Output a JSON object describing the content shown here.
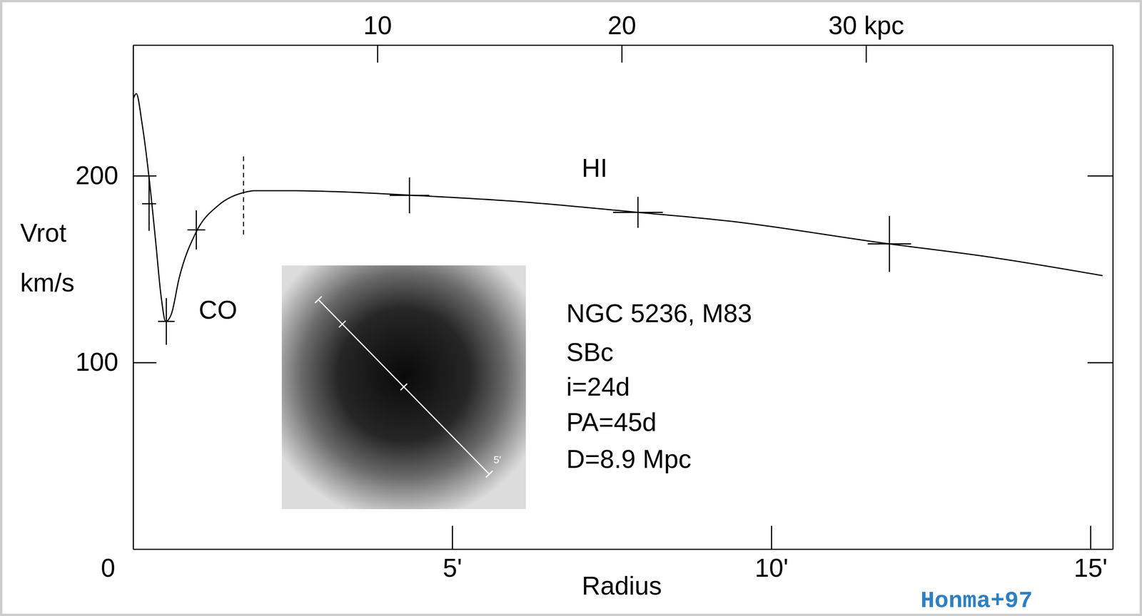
{
  "chart_data": {
    "type": "line",
    "xlabel": "Radius",
    "ylabel": [
      "Vrot",
      "km/s"
    ],
    "xlim": [
      0,
      15.35
    ],
    "xticks": [
      0,
      {
        "value": 5,
        "label": "5'"
      },
      {
        "value": 10,
        "label": "10'"
      },
      {
        "value": 15,
        "label": "15'"
      }
    ],
    "x2lim": [
      0,
      40.1
    ],
    "x2ticks": [
      10,
      20,
      {
        "value": 30,
        "label": "30 kpc"
      }
    ],
    "ylim": [
      0,
      270
    ],
    "yticks": [
      100,
      200
    ],
    "grid": false,
    "series": [
      {
        "type": "line",
        "color": "#000000",
        "line_style": "solid",
        "x": [
          0,
          0.05,
          0.14,
          0.25,
          0.35,
          0.44,
          0.51,
          0.6,
          0.72,
          0.99,
          1.33,
          1.73,
          1.9,
          2.47,
          3.16,
          4.33,
          5.9,
          7.91,
          9.32,
          11.85,
          13.31,
          15.19
        ],
        "values": [
          241,
          244,
          228,
          199,
          166,
          135,
          122,
          126,
          145,
          170,
          184,
          191,
          192,
          192,
          191.5,
          189.6,
          186.5,
          180.4,
          175.8,
          163.5,
          157,
          146.5
        ]
      },
      {
        "type": "errorbar",
        "color": "#000000",
        "marker": "cross",
        "x": [
          0.25,
          0.52,
          0.99,
          4.33,
          7.91,
          11.85
        ],
        "values": [
          185,
          122,
          171,
          189.5,
          180.4,
          163.5
        ],
        "yerr": [
          14.5,
          12.5,
          10.5,
          9.6,
          8.3,
          15
        ],
        "xerr": [
          0.11,
          0.13,
          0.14,
          0.31,
          0.39,
          0.34
        ]
      }
    ],
    "reference_lines": [
      {
        "x": 1.73,
        "y": [
          168.5,
          211.5
        ],
        "line_style": "dashed"
      }
    ],
    "annotations": [
      {
        "text": "CO",
        "x": 1.33,
        "y": 127
      },
      {
        "text": "HI",
        "x": 7.23,
        "y": 203
      }
    ],
    "info": [
      "NGC 5236, M83",
      "SBc",
      "i=24d",
      "PA=45d",
      "D=8.9 Mpc"
    ],
    "inset": {
      "scale_label": "5'"
    },
    "source": "Honma+97",
    "source_color": "#2f7fc1"
  }
}
